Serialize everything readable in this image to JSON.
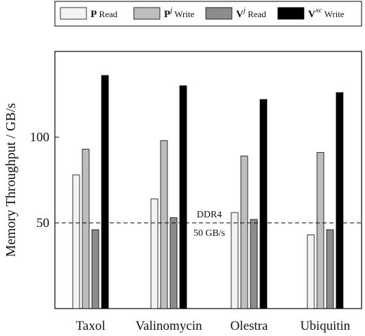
{
  "chart_data": {
    "type": "bar",
    "title": "",
    "xlabel": "",
    "ylabel": "Memory Throughput / GB/s",
    "ylim": [
      0,
      150
    ],
    "yticks": [
      50,
      100
    ],
    "grid": false,
    "legend_position": "top",
    "categories": [
      "Taxol",
      "Valinomycin",
      "Olestra",
      "Ubiquitin"
    ],
    "series": [
      {
        "name": "P Read",
        "legend_bold": "P",
        "legend_sup": "",
        "legend_text": "Read",
        "color": "#f2f2f2",
        "values": [
          78,
          64,
          56,
          43
        ]
      },
      {
        "name": "Pj Write",
        "legend_bold": "P",
        "legend_sup": "j",
        "legend_text": "Write",
        "color": "#bdbdbd",
        "values": [
          93,
          98,
          89,
          91
        ]
      },
      {
        "name": "Vj Read",
        "legend_bold": "V",
        "legend_sup": "j",
        "legend_text": "Read",
        "color": "#8c8c8c",
        "values": [
          46,
          53,
          52,
          46
        ]
      },
      {
        "name": "Vxc Write",
        "legend_bold": "V",
        "legend_sup": "xc",
        "legend_text": "Write",
        "color": "#000000",
        "values": [
          136,
          130,
          122,
          126
        ]
      }
    ],
    "reference_line": {
      "value": 50,
      "label_top": "DDR4",
      "label_bottom": "50 GB/s"
    }
  }
}
